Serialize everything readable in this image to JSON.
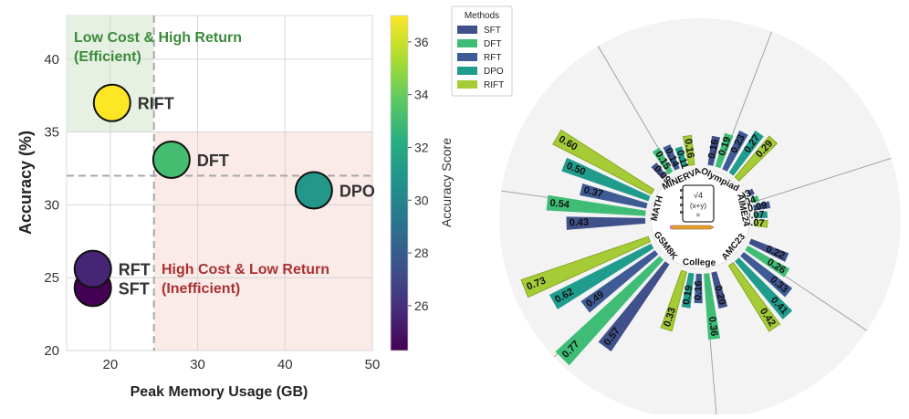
{
  "chart_data": [
    {
      "type": "scatter",
      "xlabel": "Peak Memory Usage (GB)",
      "ylabel": "Accuracy (%)",
      "xlim": [
        15,
        50
      ],
      "ylim": [
        20,
        43
      ],
      "xticks": [
        20,
        30,
        40,
        50
      ],
      "yticks": [
        20,
        25,
        30,
        35,
        40
      ],
      "grid": true,
      "points": [
        {
          "label": "RIFT",
          "x": 20.2,
          "y": 37.0
        },
        {
          "label": "DFT",
          "x": 27.0,
          "y": 33.1
        },
        {
          "label": "DPO",
          "x": 43.3,
          "y": 31.0
        },
        {
          "label": "RFT",
          "x": 18.0,
          "y": 25.6
        },
        {
          "label": "SFT",
          "x": 18.0,
          "y": 24.3
        }
      ],
      "thresholds": {
        "x": 25,
        "y": 32
      },
      "regions": {
        "efficient": {
          "line1": "Low Cost & High Return",
          "line2": "(Efficient)",
          "color": "#3b8b3b"
        },
        "inefficient": {
          "line1": "High Cost & Low Return",
          "line2": "(Inefficient)",
          "color": "#a83232"
        }
      },
      "colorbar": {
        "label": "Accuracy Score",
        "min": 24.3,
        "max": 37.0,
        "ticks": [
          26,
          28,
          30,
          32,
          34,
          36
        ]
      }
    },
    {
      "type": "bar",
      "subtype": "radial",
      "legend": {
        "title": "Methods",
        "position": "top-left"
      },
      "center_icon": "formula-notebook-icon",
      "series": [
        {
          "name": "SFT",
          "color": "#40508a"
        },
        {
          "name": "DFT",
          "color": "#3fbd77"
        },
        {
          "name": "RFT",
          "color": "#3f5b96"
        },
        {
          "name": "DPO",
          "color": "#1f9c8c"
        },
        {
          "name": "RIFT",
          "color": "#a5cc37"
        }
      ],
      "benchmarks": [
        {
          "name": "MATH",
          "values": [
            0.43,
            0.54,
            0.37,
            0.5,
            0.6
          ]
        },
        {
          "name": "MINERVA",
          "values": [
            0.09,
            0.15,
            0.14,
            0.11,
            0.16
          ]
        },
        {
          "name": "Olympiad",
          "values": [
            0.16,
            0.19,
            0.23,
            0.27,
            0.29
          ]
        },
        {
          "name": "AIME24",
          "values": [
            0.03,
            0.04,
            0.09,
            0.07,
            0.07
          ]
        },
        {
          "name": "AMC23",
          "values": [
            0.22,
            0.26,
            0.33,
            0.41,
            0.42
          ]
        },
        {
          "name": "College",
          "values": [
            0.2,
            0.36,
            0.16,
            0.19,
            0.33
          ]
        },
        {
          "name": "GSM8K",
          "values": [
            0.57,
            0.77,
            0.49,
            0.62,
            0.73
          ]
        }
      ]
    }
  ]
}
